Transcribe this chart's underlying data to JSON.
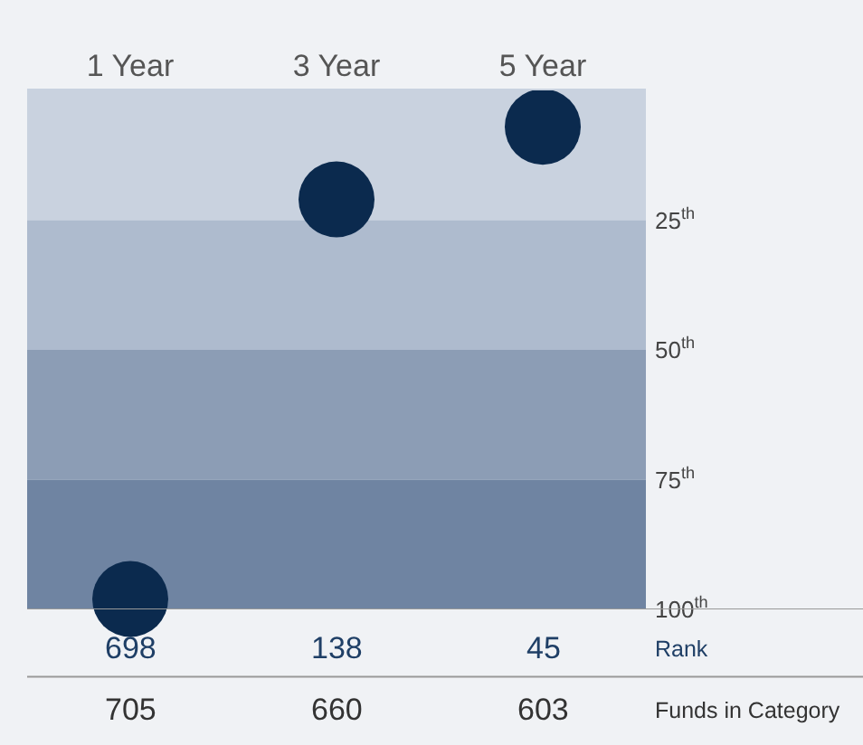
{
  "chart_data": {
    "type": "scatter",
    "categories": [
      "1 Year",
      "3 Year",
      "5 Year"
    ],
    "series": [
      {
        "color": "#0b2a4e",
        "values": [
          98,
          21,
          7
        ]
      }
    ],
    "marker": "circle",
    "ylim": [
      100,
      0
    ],
    "yticks": [
      {
        "value": 25,
        "label": "25$^{th}$"
      },
      {
        "value": 50,
        "label": "50$^{th}$"
      },
      {
        "value": 75,
        "label": "75$^{th}$"
      },
      {
        "value": 100,
        "label": "100$^{th}$"
      }
    ],
    "tick_labels": "y",
    "grid": false,
    "legend": false,
    "bands": [
      {
        "axis": "y",
        "from": 0,
        "to": 25,
        "color": "#c9d2df"
      },
      {
        "axis": "y",
        "from": 25,
        "to": 50,
        "color": "#aebbce"
      },
      {
        "axis": "y",
        "from": 50,
        "to": 75,
        "color": "#8c9db5"
      },
      {
        "axis": "y",
        "from": 75,
        "to": 100,
        "color": "#6f84a2"
      }
    ],
    "annotations": [
      "698",
      "138",
      "45",
      "Rank",
      "705",
      "660",
      "603",
      "Funds in Category"
    ]
  }
}
